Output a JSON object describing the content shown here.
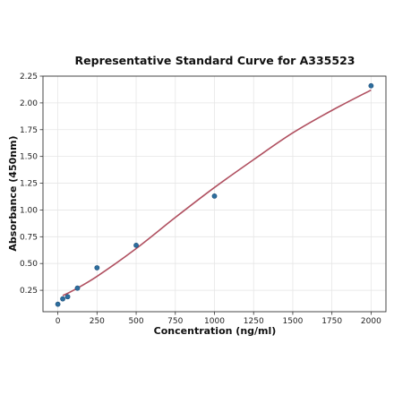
{
  "chart_data": {
    "type": "scatter",
    "title": "Representative Standard Curve for A335523",
    "xlabel": "Concentration (ng/ml)",
    "ylabel": "Absorbance (450nm)",
    "xlim": [
      -95,
      2095
    ],
    "ylim": [
      0.05,
      2.25
    ],
    "xticks": [
      0,
      250,
      500,
      750,
      1000,
      1250,
      1500,
      1750,
      2000
    ],
    "yticks": [
      0.25,
      0.5,
      0.75,
      1.0,
      1.25,
      1.5,
      1.75,
      2.0,
      2.25
    ],
    "xtick_labels": [
      "0",
      "250",
      "500",
      "750",
      "1000",
      "1250",
      "1500",
      "1750",
      "2000"
    ],
    "ytick_labels": [
      "0.25",
      "0.50",
      "0.75",
      "1.00",
      "1.25",
      "1.50",
      "1.75",
      "2.00",
      "2.25"
    ],
    "grid": true,
    "series": [
      {
        "kind": "points",
        "color": "#2c6e9e",
        "x": [
          0,
          31.25,
          62.5,
          125,
          250,
          500,
          1000,
          2000
        ],
        "y": [
          0.12,
          0.17,
          0.19,
          0.27,
          0.46,
          0.67,
          1.13,
          2.16
        ]
      },
      {
        "kind": "fit-curve",
        "color": "#b05060",
        "x": [
          31.25,
          100,
          250,
          500,
          750,
          1000,
          1250,
          1500,
          1750,
          2000
        ],
        "y": [
          0.2,
          0.25,
          0.38,
          0.64,
          0.93,
          1.21,
          1.47,
          1.72,
          1.93,
          2.12
        ]
      }
    ]
  }
}
